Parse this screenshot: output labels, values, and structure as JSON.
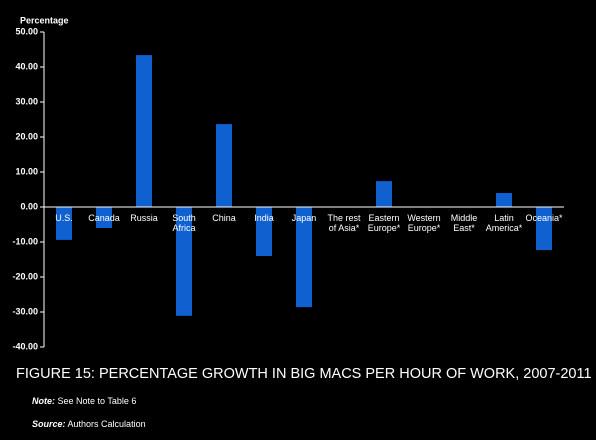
{
  "chart_data": {
    "type": "bar",
    "title": "FIGURE 15: PERCENTAGE GROWTH IN BIG MACS PER HOUR OF WORK, 2007-2011",
    "y_label": "Percentage",
    "categories": [
      "U.S.",
      "Canada",
      "Russia",
      "South Africa",
      "China",
      "India",
      "Japan",
      "The rest of Asia*",
      "Eastern Europe*",
      "Western Europe*",
      "Middle East*",
      "Latin America*",
      "Oceania*"
    ],
    "values": [
      -9.4,
      -6,
      43.4,
      -31.1,
      23.7,
      -14,
      -28.6,
      null,
      7.4,
      null,
      null,
      4,
      -12.3
    ],
    "color": "#1060d0",
    "ylim": [
      -40,
      50
    ],
    "yticks": [
      {
        "value": -40,
        "label": "-40.00"
      },
      {
        "value": -30,
        "label": "-30.00"
      },
      {
        "value": -20,
        "label": "-20.00"
      },
      {
        "value": -10,
        "label": "-10.00"
      },
      {
        "value": 0,
        "label": "0.00"
      },
      {
        "value": 10,
        "label": "10.00"
      },
      {
        "value": 20,
        "label": "20.00"
      },
      {
        "value": 30,
        "label": "30.00"
      },
      {
        "value": 40,
        "label": "40.00"
      },
      {
        "value": 50,
        "label": "50.00"
      }
    ]
  },
  "notes": [
    {
      "label": "Note:",
      "text": "See Note to Table 6"
    },
    {
      "label": "Source:",
      "text": "Authors Calculation"
    }
  ]
}
